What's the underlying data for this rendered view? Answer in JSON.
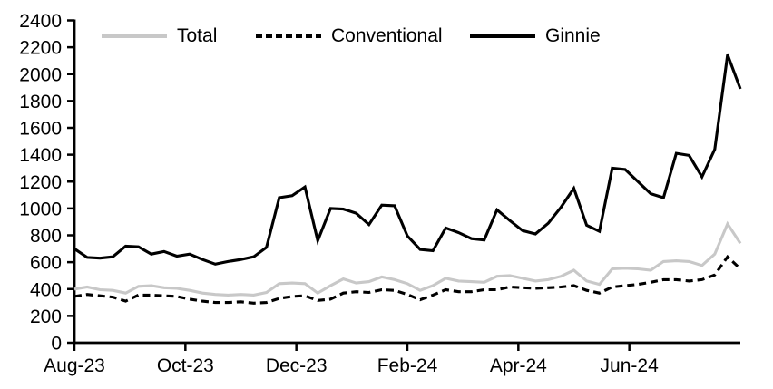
{
  "chart_data": {
    "type": "line",
    "title": "",
    "x_axis": {
      "tick_labels": [
        "Aug-23",
        "Oct-23",
        "Dec-23",
        "Feb-24",
        "Apr-24",
        "Jun-24"
      ],
      "tick_month_positions": [
        0,
        2,
        4,
        6,
        8,
        10
      ],
      "months_total": 12,
      "frequency": "weekly"
    },
    "y_axis": {
      "min": 0,
      "max": 2400,
      "step": 200,
      "tick_labels": [
        "0",
        "200",
        "400",
        "600",
        "800",
        "1000",
        "1200",
        "1400",
        "1600",
        "1800",
        "2000",
        "2200",
        "2400"
      ]
    },
    "grid": false,
    "legend_position": "top",
    "axis_color": "#000000",
    "series": [
      {
        "name": "Total",
        "color": "#c8c8c8",
        "style": "solid",
        "values": [
          400,
          415,
          395,
          390,
          370,
          420,
          425,
          410,
          405,
          390,
          370,
          360,
          355,
          360,
          355,
          375,
          440,
          445,
          440,
          370,
          425,
          475,
          445,
          455,
          490,
          470,
          440,
          390,
          425,
          480,
          460,
          455,
          450,
          495,
          500,
          480,
          460,
          470,
          495,
          540,
          460,
          435,
          550,
          555,
          550,
          540,
          605,
          610,
          605,
          575,
          660,
          885,
          740
        ]
      },
      {
        "name": "Conventional",
        "color": "#000000",
        "style": "dashed",
        "values": [
          345,
          360,
          350,
          340,
          310,
          355,
          355,
          350,
          345,
          325,
          310,
          300,
          300,
          305,
          295,
          300,
          330,
          345,
          350,
          315,
          325,
          370,
          380,
          375,
          395,
          390,
          360,
          320,
          355,
          395,
          380,
          380,
          395,
          395,
          415,
          410,
          405,
          410,
          415,
          425,
          390,
          370,
          415,
          425,
          435,
          450,
          470,
          470,
          460,
          470,
          505,
          640,
          550
        ]
      },
      {
        "name": "Ginnie",
        "color": "#000000",
        "style": "solid",
        "values": [
          700,
          635,
          630,
          640,
          720,
          715,
          660,
          680,
          645,
          660,
          620,
          585,
          605,
          620,
          640,
          710,
          1080,
          1095,
          1160,
          760,
          1000,
          995,
          965,
          880,
          1025,
          1020,
          795,
          695,
          685,
          855,
          820,
          775,
          765,
          990,
          910,
          835,
          810,
          890,
          1010,
          1150,
          875,
          830,
          1300,
          1290,
          1200,
          1110,
          1080,
          1410,
          1395,
          1235,
          1440,
          2145,
          1890
        ]
      }
    ]
  }
}
